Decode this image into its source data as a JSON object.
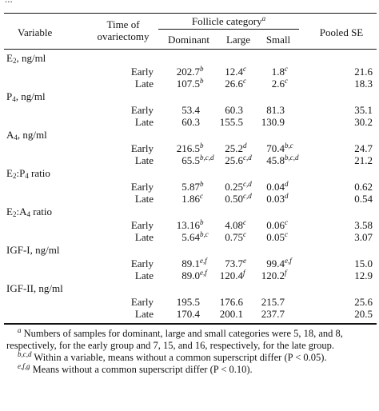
{
  "top_cut_text": "...",
  "header": {
    "variable": "Variable",
    "time_line1": "Time of",
    "time_line2": "ovariectomy",
    "follicle_category": "Follicle category",
    "follicle_sup": "a",
    "dominant": "Dominant",
    "large": "Large",
    "small": "Small",
    "pooled_se": "Pooled SE"
  },
  "variables": [
    {
      "base": "E",
      "sub": "2",
      "rest": ", ng/ml",
      "rows": [
        {
          "time": "Early",
          "dom": "202.7",
          "dom_sup": "b",
          "lg": "12.4",
          "lg_sup": "c",
          "sm": "1.8",
          "sm_sup": "c",
          "se": "21.6"
        },
        {
          "time": "Late",
          "dom": "107.5",
          "dom_sup": "b",
          "lg": "26.6",
          "lg_sup": "c",
          "sm": "2.6",
          "sm_sup": "c",
          "se": "18.3"
        }
      ]
    },
    {
      "base": "P",
      "sub": "4",
      "rest": ", ng/ml",
      "rows": [
        {
          "time": "Early",
          "dom": "53.4",
          "dom_sup": "",
          "lg": "60.3",
          "lg_sup": "",
          "sm": "81.3",
          "sm_sup": "",
          "se": "35.1"
        },
        {
          "time": "Late",
          "dom": "60.3",
          "dom_sup": "",
          "lg": "155.5",
          "lg_sup": "",
          "sm": "130.9",
          "sm_sup": "",
          "se": "30.2"
        }
      ]
    },
    {
      "base": "A",
      "sub": "4",
      "rest": ", ng/ml",
      "rows": [
        {
          "time": "Early",
          "dom": "216.5",
          "dom_sup": "b",
          "lg": "25.2",
          "lg_sup": "d",
          "sm": "70.4",
          "sm_sup": "b,c",
          "se": "24.7"
        },
        {
          "time": "Late",
          "dom": "65.5",
          "dom_sup": "b,c,d",
          "lg": "25.6",
          "lg_sup": "c,d",
          "sm": "45.8",
          "sm_sup": "b,c,d",
          "se": "21.2"
        }
      ]
    },
    {
      "base": "E",
      "sub": "2",
      "rest": ":P",
      "sub2": "4",
      "rest2": " ratio",
      "rows": [
        {
          "time": "Early",
          "dom": "5.87",
          "dom_sup": "b",
          "lg": "0.25",
          "lg_sup": "c,d",
          "sm": "0.04",
          "sm_sup": "d",
          "se": "0.62"
        },
        {
          "time": "Late",
          "dom": "1.86",
          "dom_sup": "c",
          "lg": "0.50",
          "lg_sup": "c,d",
          "sm": "0.03",
          "sm_sup": "d",
          "se": "0.54"
        }
      ]
    },
    {
      "base": "E",
      "sub": "2",
      "rest": ":A",
      "sub2": "4",
      "rest2": " ratio",
      "rows": [
        {
          "time": "Early",
          "dom": "13.16",
          "dom_sup": "b",
          "lg": "4.08",
          "lg_sup": "c",
          "sm": "0.06",
          "sm_sup": "c",
          "se": "3.58"
        },
        {
          "time": "Late",
          "dom": "5.64",
          "dom_sup": "b,c",
          "lg": "0.75",
          "lg_sup": "c",
          "sm": "0.05",
          "sm_sup": "c",
          "se": "3.07"
        }
      ]
    },
    {
      "base": "IGF-I, ng/ml",
      "rows": [
        {
          "time": "Early",
          "dom": "89.1",
          "dom_sup": "e,f",
          "lg": "73.7",
          "lg_sup": "e",
          "sm": "99.4",
          "sm_sup": "e,f",
          "se": "15.0"
        },
        {
          "time": "Late",
          "dom": "89.0",
          "dom_sup": "e,f",
          "lg": "120.4",
          "lg_sup": "f",
          "sm": "120.2",
          "sm_sup": "f",
          "se": "12.9"
        }
      ]
    },
    {
      "base": "IGF-II, ng/ml",
      "rows": [
        {
          "time": "Early",
          "dom": "195.5",
          "dom_sup": "",
          "lg": "176.6",
          "lg_sup": "",
          "sm": "215.7",
          "sm_sup": "",
          "se": "25.6"
        },
        {
          "time": "Late",
          "dom": "170.4",
          "dom_sup": "",
          "lg": "200.1",
          "lg_sup": "",
          "sm": "237.7",
          "sm_sup": "",
          "se": "20.5"
        }
      ]
    }
  ],
  "notes": {
    "a_sup": "a",
    "a_text": " Numbers of samples for dominant, large and small categories were 5, 18, and 8, respectively, for the early group and 7, 15, and 16, respectively, for the late group.",
    "bcd_sup": "b,c,d",
    "bcd_text": " Within a variable, means without a common superscript differ (P < 0.05).",
    "efg_sup": "e,f,g",
    "efg_text": " Means without a common superscript differ (P < 0.10)."
  }
}
